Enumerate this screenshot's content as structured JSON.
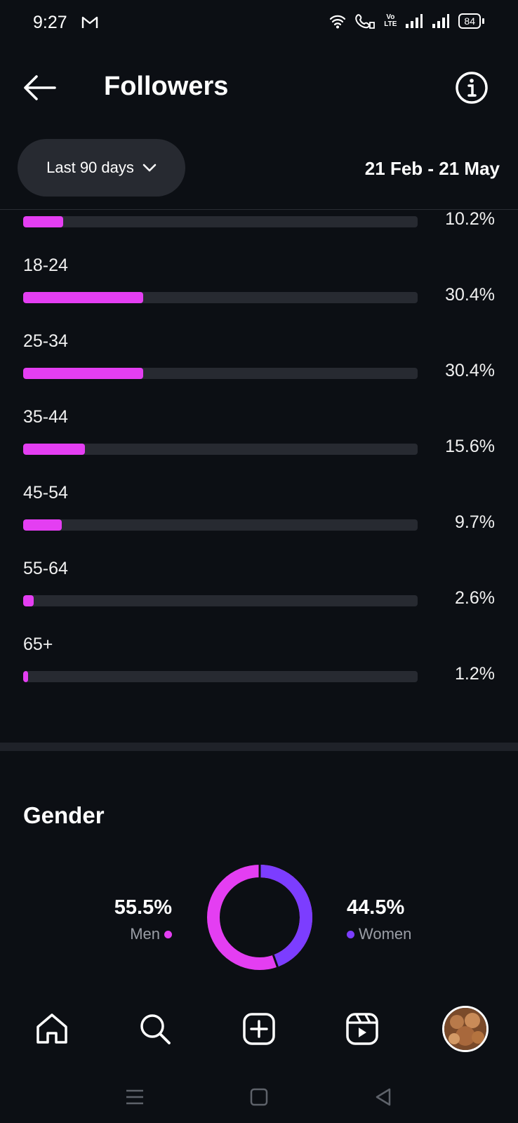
{
  "status_bar": {
    "time": "9:27",
    "battery": "84"
  },
  "header": {
    "title": "Followers"
  },
  "filter": {
    "range_label": "Last 90 days",
    "date_range": "21 Feb - 21 May"
  },
  "age_range": {
    "rows": [
      {
        "label": "",
        "percent": "10.2%",
        "value": 10.2
      },
      {
        "label": "18-24",
        "percent": "30.4%",
        "value": 30.4
      },
      {
        "label": "25-34",
        "percent": "30.4%",
        "value": 30.4
      },
      {
        "label": "35-44",
        "percent": "15.6%",
        "value": 15.6
      },
      {
        "label": "45-54",
        "percent": "9.7%",
        "value": 9.7
      },
      {
        "label": "55-64",
        "percent": "2.6%",
        "value": 2.6
      },
      {
        "label": "65+",
        "percent": "1.2%",
        "value": 1.2
      }
    ]
  },
  "gender": {
    "title": "Gender",
    "men": {
      "value": "55.5%",
      "label": "Men",
      "share": 55.5,
      "color": "#e43ef2"
    },
    "women": {
      "value": "44.5%",
      "label": "Women",
      "share": 44.5,
      "color": "#7c3dff"
    }
  },
  "nav": {
    "items": [
      {
        "icon": "home-icon"
      },
      {
        "icon": "search-icon"
      },
      {
        "icon": "create-post-icon"
      },
      {
        "icon": "reels-icon"
      },
      {
        "icon": "profile-avatar"
      }
    ]
  },
  "colors": {
    "background": "#0c0f14",
    "bar_fill": "#e43ef2",
    "bar_track": "#272a31",
    "women": "#7c3dff"
  }
}
